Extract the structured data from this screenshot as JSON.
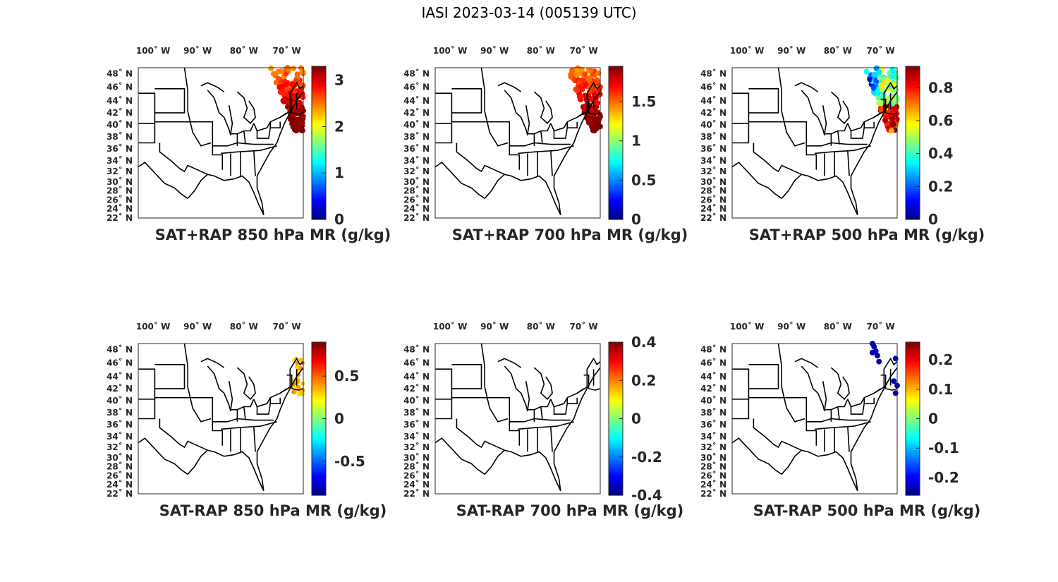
{
  "figure": {
    "title": "IASI 2023-03-14 (005139 UTC)"
  },
  "map": {
    "lon_ticks": [
      "100˚ W",
      "90˚ W",
      "80˚ W",
      "70˚ W"
    ],
    "lat_ticks": [
      "48˚ N",
      "46˚ N",
      "44˚ N",
      "42˚ N",
      "40˚ N",
      "38˚ N",
      "36˚ N",
      "34˚ N",
      "32˚ N",
      "30˚ N",
      "28˚ N",
      "26˚ N",
      "24˚ N",
      "22˚ N"
    ]
  },
  "colormap": "jet",
  "panels": [
    {
      "title": "SAT+RAP 850 hPa MR (g/kg)",
      "cbar_range": [
        0,
        3.3
      ],
      "cbar_ticks": [
        "0",
        "1",
        "2",
        "3"
      ],
      "cbar_tick_values": [
        0,
        1,
        2,
        3
      ]
    },
    {
      "title": "SAT+RAP 700 hPa MR (g/kg)",
      "cbar_range": [
        0,
        1.95
      ],
      "cbar_ticks": [
        "0",
        "0.5",
        "1",
        "1.5"
      ],
      "cbar_tick_values": [
        0,
        0.5,
        1,
        1.5
      ]
    },
    {
      "title": "SAT+RAP 500 hPa MR (g/kg)",
      "cbar_range": [
        0,
        0.93
      ],
      "cbar_ticks": [
        "0",
        "0.2",
        "0.4",
        "0.6",
        "0.8"
      ],
      "cbar_tick_values": [
        0,
        0.2,
        0.4,
        0.6,
        0.8
      ]
    },
    {
      "title": "SAT-RAP 850 hPa MR (g/kg)",
      "cbar_range": [
        -0.9,
        0.9
      ],
      "cbar_ticks": [
        "-0.5",
        "0",
        "0.5"
      ],
      "cbar_tick_values": [
        -0.5,
        0,
        0.5
      ]
    },
    {
      "title": "SAT-RAP 700 hPa MR (g/kg)",
      "cbar_range": [
        -0.4,
        0.4
      ],
      "cbar_ticks": [
        "-0.4",
        "-0.2",
        "0",
        "0.2",
        "0.4"
      ],
      "cbar_tick_values": [
        -0.4,
        -0.2,
        0,
        0.2,
        0.4
      ]
    },
    {
      "title": "SAT-RAP 500 hPa MR (g/kg)",
      "cbar_range": [
        -0.26,
        0.26
      ],
      "cbar_ticks": [
        "-0.2",
        "-0.1",
        "0",
        "0.1",
        "0.2"
      ],
      "cbar_tick_values": [
        -0.2,
        -0.1,
        0,
        0.1,
        0.2
      ]
    }
  ]
}
